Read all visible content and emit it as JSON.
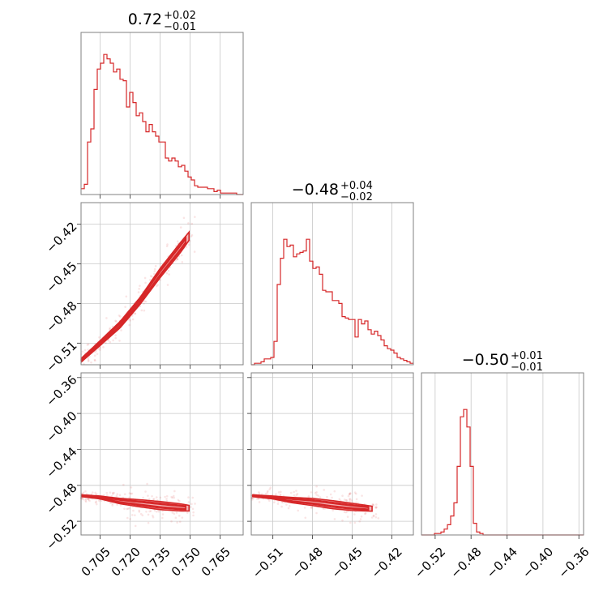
{
  "colors": {
    "accent": "#d62728",
    "grid": "#c8c8c8",
    "frame": "#808080",
    "fill": "#f4b3b5"
  },
  "titles": [
    {
      "median": "0.72",
      "plus": "+0.02",
      "minus": "−0.01"
    },
    {
      "median": "−0.48",
      "plus": "+0.04",
      "minus": "−0.02"
    },
    {
      "median": "−0.50",
      "plus": "+0.01",
      "minus": "−0.01"
    }
  ],
  "chart_data": {
    "type": "corner",
    "parameters": [
      {
        "range": [
          0.6955,
          0.7765
        ],
        "ticks": [
          0.705,
          0.72,
          0.735,
          0.75,
          0.765
        ],
        "tick_labels": [
          "0.705",
          "0.720",
          "0.735",
          "0.750",
          "0.765"
        ]
      },
      {
        "range": [
          -0.5263,
          -0.4037
        ],
        "ticks": [
          -0.51,
          -0.48,
          -0.45,
          -0.42
        ],
        "tick_labels": [
          "−0.51",
          "−0.48",
          "−0.45",
          "−0.42"
        ]
      },
      {
        "range": [
          -0.5352,
          -0.3548
        ],
        "ticks": [
          -0.52,
          -0.48,
          -0.44,
          -0.4,
          -0.36
        ],
        "tick_labels": [
          "−0.52",
          "−0.48",
          "−0.44",
          "−0.40",
          "−0.36"
        ]
      }
    ],
    "histograms": [
      {
        "counts": [
          0.04,
          0.07,
          0.36,
          0.45,
          0.72,
          0.86,
          0.9,
          0.96,
          0.93,
          0.9,
          0.84,
          0.86,
          0.79,
          0.78,
          0.6,
          0.7,
          0.63,
          0.54,
          0.56,
          0.5,
          0.43,
          0.48,
          0.43,
          0.4,
          0.36,
          0.36,
          0.25,
          0.23,
          0.25,
          0.23,
          0.19,
          0.2,
          0.16,
          0.12,
          0.1,
          0.06,
          0.05,
          0.05,
          0.05,
          0.04,
          0.04,
          0.02,
          0.03,
          0.01,
          0.01,
          0.01,
          0.01,
          0.01,
          0.0,
          0.0
        ]
      },
      {
        "counts": [
          0.0,
          0.01,
          0.01,
          0.02,
          0.04,
          0.04,
          0.05,
          0.16,
          0.55,
          0.73,
          0.86,
          0.81,
          0.82,
          0.74,
          0.76,
          0.77,
          0.78,
          0.86,
          0.71,
          0.66,
          0.67,
          0.62,
          0.51,
          0.5,
          0.5,
          0.44,
          0.44,
          0.42,
          0.33,
          0.32,
          0.31,
          0.31,
          0.19,
          0.31,
          0.28,
          0.3,
          0.24,
          0.21,
          0.23,
          0.2,
          0.17,
          0.13,
          0.11,
          0.1,
          0.08,
          0.05,
          0.04,
          0.03,
          0.02,
          0.01
        ]
      },
      {
        "counts": [
          0.0,
          0.0,
          0.0,
          0.0,
          0.01,
          0.01,
          0.02,
          0.04,
          0.07,
          0.13,
          0.22,
          0.47,
          0.81,
          0.86,
          0.74,
          0.47,
          0.08,
          0.02,
          0.01,
          0.0,
          0.0,
          0.0,
          0.0,
          0.0,
          0.0,
          0.0,
          0.0,
          0.0,
          0.0,
          0.0,
          0.0,
          0.0,
          0.0,
          0.0,
          0.0,
          0.0,
          0.0,
          0.0,
          0.0,
          0.0,
          0.0,
          0.0,
          0.0,
          0.0,
          0.0,
          0.0,
          0.0,
          0.0,
          0.0,
          0.0
        ]
      }
    ],
    "pairs": [
      {
        "x_param": 0,
        "y_param": 1,
        "ridge_x": [
          0.6955,
          0.705,
          0.715,
          0.725,
          0.735,
          0.745,
          0.75
        ],
        "ridge_y": [
          -0.523,
          -0.51,
          -0.496,
          -0.478,
          -0.457,
          -0.438,
          -0.428
        ],
        "band_halfwidth": [
          0.0014,
          0.0018,
          0.0024,
          0.0026,
          0.0035,
          0.0038,
          0.003
        ],
        "x_span": [
          0.6955,
          0.75
        ]
      },
      {
        "x_param": 0,
        "y_param": 2,
        "ridge_x": [
          0.6955,
          0.705,
          0.715,
          0.725,
          0.735,
          0.745,
          0.75
        ],
        "ridge_y": [
          -0.4915,
          -0.4935,
          -0.4975,
          -0.5,
          -0.5025,
          -0.5045,
          -0.5055
        ],
        "band_halfwidth": [
          0.001,
          0.0016,
          0.003,
          0.004,
          0.0045,
          0.004,
          0.003
        ],
        "x_span": [
          0.6955,
          0.75
        ]
      },
      {
        "x_param": 1,
        "y_param": 2,
        "ridge_x": [
          -0.526,
          -0.51,
          -0.495,
          -0.48,
          -0.465,
          -0.45,
          -0.435
        ],
        "ridge_y": [
          -0.4915,
          -0.4935,
          -0.4965,
          -0.4985,
          -0.5015,
          -0.504,
          -0.506
        ],
        "band_halfwidth": [
          0.001,
          0.0016,
          0.003,
          0.004,
          0.0045,
          0.004,
          0.0028
        ],
        "x_span": [
          -0.526,
          -0.434
        ]
      }
    ],
    "samples": 200
  }
}
